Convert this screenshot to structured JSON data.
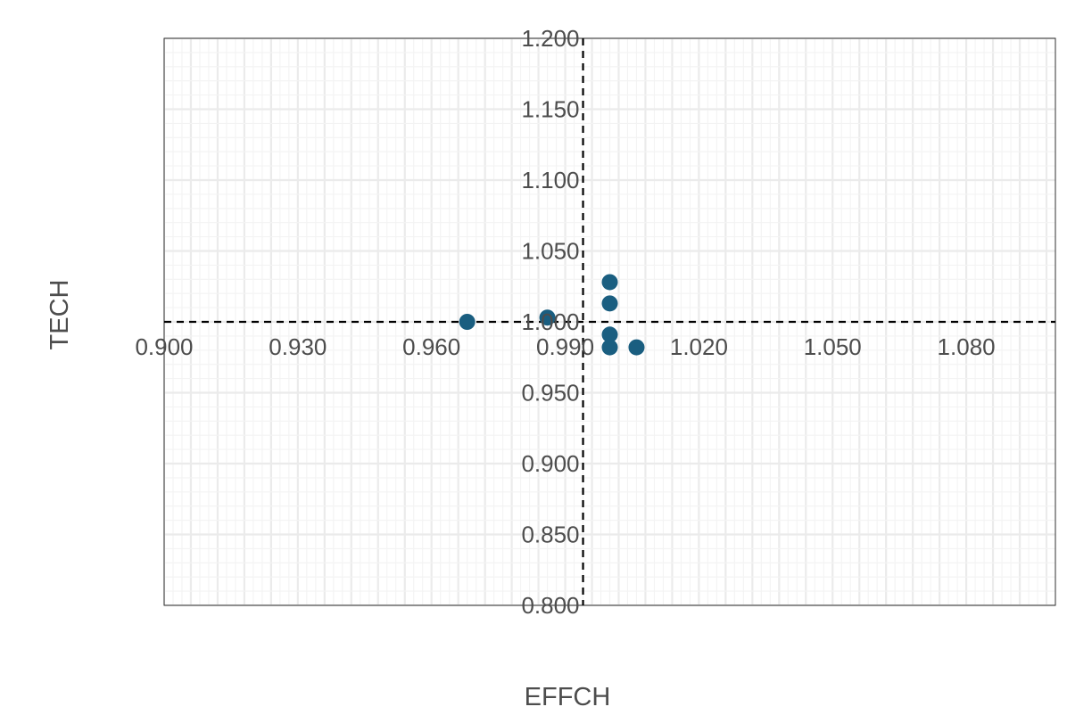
{
  "chart_data": {
    "type": "scatter",
    "title": "",
    "xlabel": "EFFCH",
    "ylabel": "TECH",
    "xlim": [
      0.9,
      1.1
    ],
    "ylim": [
      0.8,
      1.2
    ],
    "x_ticks": [
      "0.900",
      "0.930",
      "0.960",
      "0.990",
      "1.020",
      "1.050",
      "1.080"
    ],
    "y_ticks": [
      "0.800",
      "0.850",
      "0.900",
      "0.950",
      "1.000",
      "1.050",
      "1.100",
      "1.150",
      "1.200"
    ],
    "grid": true,
    "reference_lines": {
      "x": 0.994,
      "y": 1.0
    },
    "point_color": "#1a5e80",
    "points": [
      {
        "x": 0.968,
        "y": 1.0
      },
      {
        "x": 0.986,
        "y": 1.003
      },
      {
        "x": 1.0,
        "y": 1.028
      },
      {
        "x": 1.0,
        "y": 1.013
      },
      {
        "x": 1.0,
        "y": 0.991
      },
      {
        "x": 1.0,
        "y": 0.982
      },
      {
        "x": 1.006,
        "y": 0.982
      }
    ]
  }
}
